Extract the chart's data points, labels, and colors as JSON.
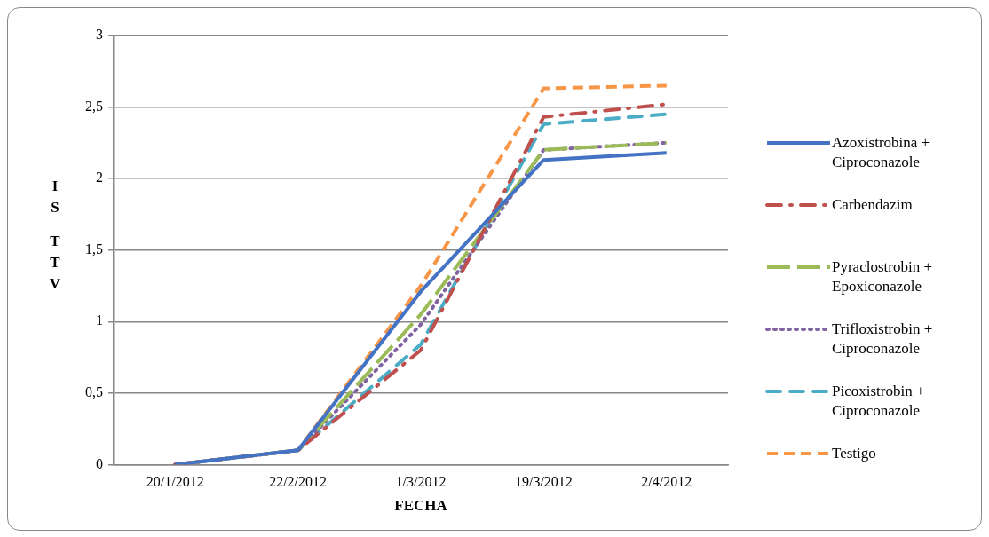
{
  "chart_data": {
    "type": "line",
    "xlabel": "FECHA",
    "ylabel": "IS TTV",
    "categories": [
      "20/1/2012",
      "22/2/2012",
      "1/3/2012",
      "19/3/2012",
      "2/4/2012"
    ],
    "ylim": [
      0,
      3
    ],
    "yticks": [
      0,
      {
        "value": 0.5,
        "label": "0,5"
      },
      1,
      {
        "value": 1.5,
        "label": "1,5"
      },
      2,
      {
        "value": 2.5,
        "label": "2,5"
      },
      3
    ],
    "grid": "y",
    "legend": "right",
    "marker": "none",
    "series": [
      {
        "name": "Azoxistrobina + Ciproconazole",
        "color": "#4472c4",
        "line_style": "solid",
        "values": [
          0,
          0.1,
          1.21,
          2.13,
          2.18
        ]
      },
      {
        "name": "Carbendazim",
        "color": "#c0504d",
        "line_style": "dashdot",
        "values": [
          0,
          0.1,
          0.8,
          2.43,
          2.52
        ]
      },
      {
        "name": "Pyraclostrobin + Epoxiconazole",
        "color": "#9bbb59",
        "line_style": "longdash",
        "values": [
          0,
          0.1,
          1.05,
          2.2,
          2.25
        ]
      },
      {
        "name": "Trifloxistrobin + Ciproconazole",
        "color": "#8064a2",
        "line_style": "dotted",
        "values": [
          0,
          0.1,
          0.98,
          2.2,
          2.25
        ]
      },
      {
        "name": "Picoxistrobin + Ciproconazole",
        "color": "#4bacc6",
        "line_style": "dashed",
        "values": [
          0,
          0.1,
          0.84,
          2.38,
          2.45
        ]
      },
      {
        "name": "Testigo",
        "color": "#f79646",
        "line_style": "shortdash",
        "values": [
          0,
          0.1,
          1.25,
          2.63,
          2.65
        ]
      }
    ]
  }
}
